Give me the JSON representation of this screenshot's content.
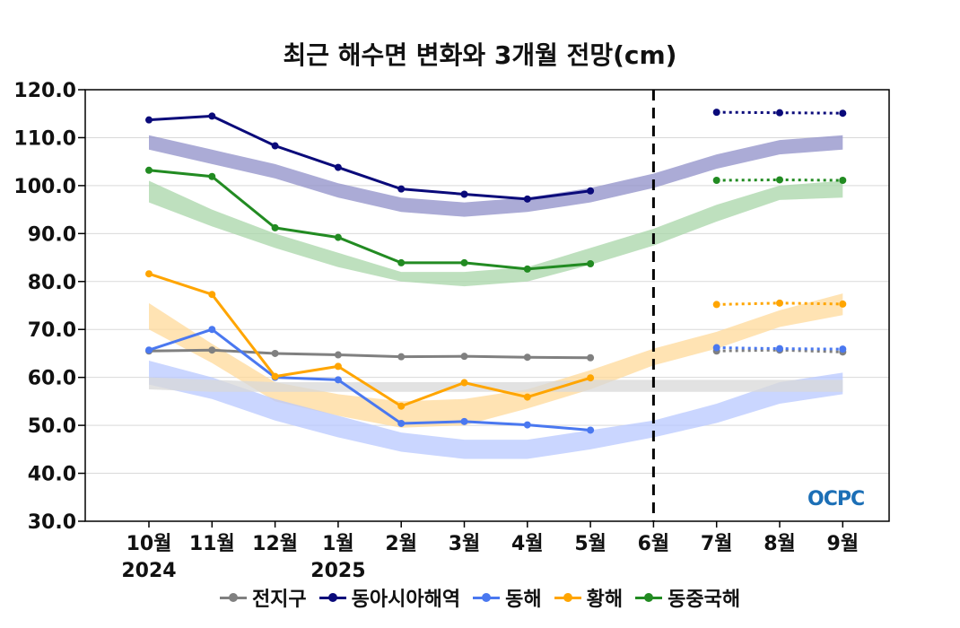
{
  "chart_data": {
    "type": "line",
    "title": "최근 해수면 변화와 3개월 전망(cm)",
    "ylim": [
      30,
      120
    ],
    "yticks": [
      "30.0",
      "40.0",
      "50.0",
      "60.0",
      "70.0",
      "80.0",
      "90.0",
      "100.0",
      "110.0",
      "120.0"
    ],
    "categories": [
      "10월",
      "11월",
      "12월",
      "1월",
      "2월",
      "3월",
      "4월",
      "5월",
      "6월",
      "7월",
      "8월",
      "9월"
    ],
    "year_labels": [
      {
        "index": 0,
        "label": "2024"
      },
      {
        "index": 3,
        "label": "2025"
      }
    ],
    "forecast_divider_index": 8,
    "logo": "OCPC",
    "bands": [
      {
        "series": "동아시아해역",
        "color": "#8f8fc8",
        "upper": [
          110.5,
          107.5,
          104.5,
          100.5,
          97.5,
          96.5,
          97.5,
          99.5,
          102.5,
          106.5,
          109.5,
          110.5
        ],
        "lower": [
          107.5,
          104.5,
          101.5,
          97.5,
          94.5,
          93.5,
          94.5,
          96.5,
          99.5,
          103.5,
          106.5,
          107.5
        ]
      },
      {
        "series": "동중국해",
        "color": "#a8d5a8",
        "upper": [
          101,
          95,
          90,
          86,
          82,
          82,
          83,
          87,
          91,
          96,
          100,
          101
        ],
        "lower": [
          96.5,
          91.5,
          87,
          83,
          80,
          79,
          80,
          83.5,
          87.5,
          92.5,
          97,
          97.5
        ]
      },
      {
        "series": "황해",
        "color": "#ffd99a",
        "upper": [
          75.5,
          67,
          59,
          56.5,
          55,
          55.5,
          57.5,
          61.5,
          66,
          69.5,
          74,
          77.5
        ],
        "lower": [
          70,
          63,
          55,
          52,
          49.5,
          50,
          53.5,
          57.5,
          62.5,
          66,
          70.5,
          73
        ]
      },
      {
        "series": "동해",
        "color": "#b8c8ff",
        "upper": [
          63.5,
          60,
          55.5,
          52,
          48.5,
          47,
          47,
          49,
          51,
          54.5,
          59,
          61
        ],
        "lower": [
          58.5,
          55.5,
          51,
          47.5,
          44.5,
          43,
          43,
          45,
          47.5,
          50.5,
          54.5,
          56.5
        ]
      },
      {
        "series": "전지구",
        "color": "#d8d8d8",
        "upper": [
          60,
          59.5,
          59,
          59,
          59,
          59,
          59,
          59.5,
          59.5,
          59.5,
          59.5,
          59.5
        ],
        "lower": [
          57.5,
          57,
          57,
          57,
          57,
          57,
          57,
          57,
          57,
          57,
          57,
          57
        ]
      }
    ],
    "series": [
      {
        "name": "전지구",
        "color": "#808080",
        "values": [
          65.5,
          65.7,
          65,
          64.7,
          64.3,
          64.4,
          64.2,
          64.1,
          null,
          null,
          null,
          null
        ],
        "forecast": [
          null,
          null,
          null,
          null,
          null,
          null,
          null,
          null,
          null,
          65.5,
          65.7,
          65.3
        ]
      },
      {
        "name": "동아시아해역",
        "color": "#0a0a7a",
        "values": [
          113.7,
          114.5,
          108.3,
          103.8,
          99.3,
          98.2,
          97.2,
          98.9,
          null,
          null,
          null,
          null
        ],
        "forecast": [
          null,
          null,
          null,
          null,
          null,
          null,
          null,
          null,
          null,
          115.3,
          115.2,
          115.1
        ]
      },
      {
        "name": "동해",
        "color": "#4a78f0",
        "values": [
          65.7,
          70,
          60,
          59.5,
          50.4,
          50.8,
          50.1,
          49,
          null,
          null,
          null,
          null
        ],
        "forecast": [
          null,
          null,
          null,
          null,
          null,
          null,
          null,
          null,
          null,
          66.2,
          66,
          65.9
        ]
      },
      {
        "name": "황해",
        "color": "#ffa500",
        "values": [
          81.6,
          77.3,
          60.2,
          62.3,
          54,
          58.9,
          55.9,
          59.9,
          null,
          null,
          null,
          null
        ],
        "forecast": [
          null,
          null,
          null,
          null,
          null,
          null,
          null,
          null,
          null,
          75.2,
          75.5,
          75.3
        ]
      },
      {
        "name": "동중국해",
        "color": "#228b22",
        "values": [
          103.2,
          101.9,
          91.2,
          89.2,
          83.9,
          83.9,
          82.6,
          83.7,
          null,
          null,
          null,
          null
        ],
        "forecast": [
          null,
          null,
          null,
          null,
          null,
          null,
          null,
          null,
          null,
          101.1,
          101.2,
          101.1
        ]
      }
    ]
  }
}
